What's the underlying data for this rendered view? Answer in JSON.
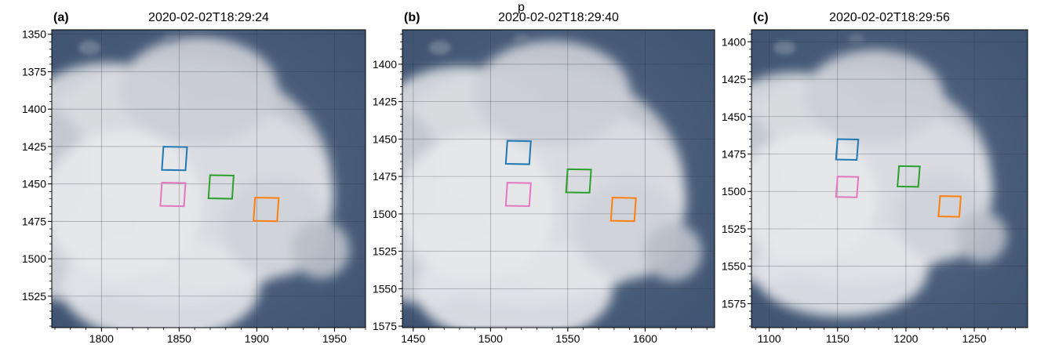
{
  "figure": {
    "clipped_header": "p",
    "panels": [
      {
        "label": "(a)",
        "timestamp": "2020-02-02T18:29:24",
        "xlim": [
          1768,
          1970
        ],
        "ylim": [
          1546,
          1347
        ],
        "xticks": [
          1800,
          1850,
          1900,
          1950
        ],
        "yticks": [
          1350,
          1375,
          1400,
          1425,
          1450,
          1475,
          1500,
          1525
        ],
        "cloud": {
          "cx": 1848,
          "cy": 1448
        },
        "boxes": [
          {
            "color": "#1f77b4",
            "x": 1847,
            "y": 1433
          },
          {
            "color": "#2ca02c",
            "x": 1877,
            "y": 1452
          },
          {
            "color": "#e377c2",
            "x": 1846,
            "y": 1457
          },
          {
            "color": "#ff7f0e",
            "x": 1906,
            "y": 1467
          }
        ]
      },
      {
        "label": "(b)",
        "timestamp": "2020-02-02T18:29:40",
        "xlim": [
          1443,
          1645
        ],
        "ylim": [
          1576,
          1377
        ],
        "xticks": [
          1450,
          1500,
          1550,
          1600
        ],
        "yticks": [
          1400,
          1425,
          1450,
          1475,
          1500,
          1525,
          1550,
          1575
        ],
        "cloud": {
          "cx": 1525,
          "cy": 1480
        },
        "boxes": [
          {
            "color": "#1f77b4",
            "x": 1518,
            "y": 1459
          },
          {
            "color": "#2ca02c",
            "x": 1557,
            "y": 1478
          },
          {
            "color": "#e377c2",
            "x": 1518,
            "y": 1487
          },
          {
            "color": "#ff7f0e",
            "x": 1586,
            "y": 1497
          }
        ]
      },
      {
        "label": "(c)",
        "timestamp": "2020-02-02T18:29:56",
        "xlim": [
          1087,
          1289
        ],
        "ylim": [
          1591,
          1392
        ],
        "xticks": [
          1100,
          1150,
          1200,
          1250
        ],
        "yticks": [
          1400,
          1425,
          1450,
          1475,
          1500,
          1525,
          1550,
          1575
        ],
        "cloud": {
          "cx": 1162,
          "cy": 1490
        },
        "boxes": [
          {
            "color": "#1f77b4",
            "x": 1157,
            "y": 1472
          },
          {
            "color": "#2ca02c",
            "x": 1202,
            "y": 1490
          },
          {
            "color": "#e377c2",
            "x": 1157,
            "y": 1497
          },
          {
            "color": "#ff7f0e",
            "x": 1232,
            "y": 1510
          }
        ]
      }
    ]
  }
}
